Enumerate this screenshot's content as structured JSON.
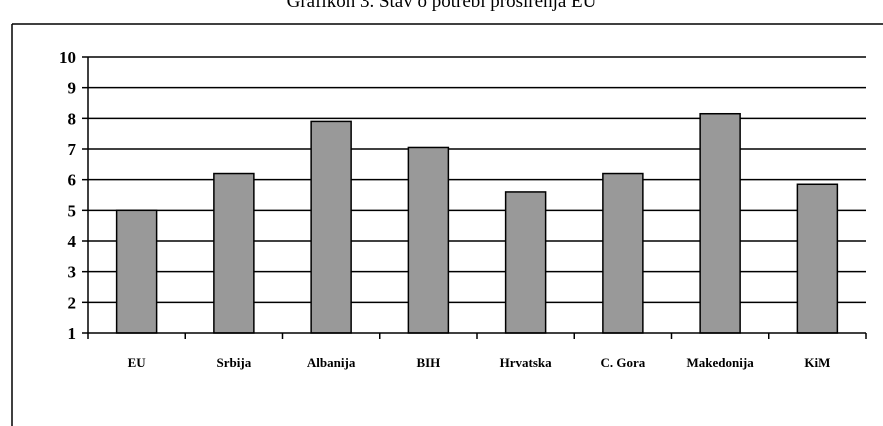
{
  "chart_data": {
    "type": "bar",
    "title": "Grafikon 3. Stav o potrebi proširenja EU",
    "xlabel": "",
    "ylabel": "",
    "categories": [
      "EU",
      "Srbija",
      "Albanija",
      "BIH",
      "Hrvatska",
      "C. Gora",
      "Makedonija",
      "KiM"
    ],
    "values": [
      5.0,
      6.2,
      7.9,
      7.05,
      5.6,
      6.2,
      8.15,
      5.85
    ],
    "ylim": [
      1,
      10
    ],
    "yticks": [
      1,
      2,
      3,
      4,
      5,
      6,
      7,
      8,
      9,
      10
    ],
    "grid": true,
    "legend": "none",
    "colors": {
      "bar_fill": "#999999",
      "bar_stroke": "#000000",
      "grid": "#000000",
      "frame": "#000000"
    }
  }
}
